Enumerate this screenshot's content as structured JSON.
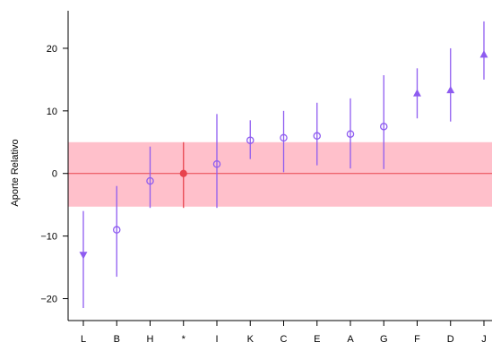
{
  "chart_data": {
    "type": "scatter",
    "ylabel": "Aporte Relativo",
    "xlabel": "",
    "title": "",
    "ylim": [
      -23.5,
      26
    ],
    "yticks": [
      -20,
      -10,
      0,
      10,
      20
    ],
    "reference_line": 0,
    "reference_band": [
      -5.3,
      5.0
    ],
    "colors": {
      "band": "#ffc0cb",
      "reference": "#e8434d",
      "points": "#8e5cf0",
      "highlight": "#e8434d"
    },
    "categories": [
      "L",
      "B",
      "H",
      "*",
      "I",
      "K",
      "C",
      "E",
      "A",
      "G",
      "F",
      "D",
      "J"
    ],
    "points": [
      {
        "label": "L",
        "value": -13.0,
        "low": -21.5,
        "high": -6.0,
        "marker": "triangle-down"
      },
      {
        "label": "B",
        "value": -9.0,
        "low": -16.5,
        "high": -2.0,
        "marker": "circle"
      },
      {
        "label": "H",
        "value": -1.2,
        "low": -5.5,
        "high": 4.3,
        "marker": "circle"
      },
      {
        "label": "*",
        "value": 0.0,
        "low": -5.5,
        "high": 5.0,
        "marker": "filled-circle"
      },
      {
        "label": "I",
        "value": 1.5,
        "low": -5.5,
        "high": 9.5,
        "marker": "circle"
      },
      {
        "label": "K",
        "value": 5.3,
        "low": 2.3,
        "high": 8.5,
        "marker": "circle"
      },
      {
        "label": "C",
        "value": 5.7,
        "low": 0.2,
        "high": 10.0,
        "marker": "circle"
      },
      {
        "label": "E",
        "value": 6.0,
        "low": 1.3,
        "high": 11.3,
        "marker": "circle"
      },
      {
        "label": "A",
        "value": 6.3,
        "low": 0.8,
        "high": 12.0,
        "marker": "circle"
      },
      {
        "label": "G",
        "value": 7.5,
        "low": 0.7,
        "high": 15.7,
        "marker": "circle"
      },
      {
        "label": "F",
        "value": 12.8,
        "low": 8.8,
        "high": 16.8,
        "marker": "triangle-up"
      },
      {
        "label": "D",
        "value": 13.3,
        "low": 8.3,
        "high": 20.0,
        "marker": "triangle-up"
      },
      {
        "label": "J",
        "value": 19.0,
        "low": 15.0,
        "high": 24.3,
        "marker": "triangle-up"
      }
    ]
  }
}
